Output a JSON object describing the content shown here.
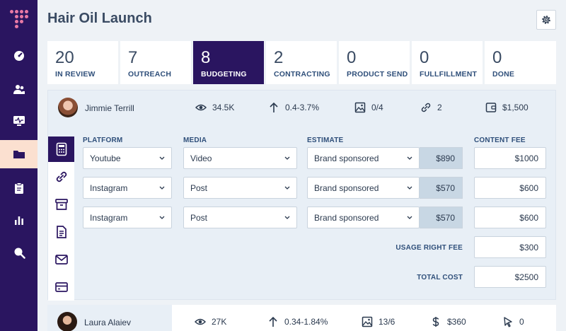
{
  "header": {
    "title": "Hair Oil Launch"
  },
  "icons": {
    "logo": "dot-grid-logo",
    "nav": [
      "dashboard-icon",
      "users-icon",
      "monitor-icon",
      "folder-icon",
      "clipboard-icon",
      "bar-chart-icon",
      "search-icon"
    ],
    "settings": "gear-icon"
  },
  "colors": {
    "brand": "#2a1560",
    "accent": "#e97aa5",
    "active_nav_bg": "#fbe0d0"
  },
  "stages": [
    {
      "count": "20",
      "label": "IN REVIEW"
    },
    {
      "count": "7",
      "label": "OUTREACH"
    },
    {
      "count": "8",
      "label": "BUDGETING"
    },
    {
      "count": "2",
      "label": "CONTRACTING"
    },
    {
      "count": "0",
      "label": "PRODUCT SEND"
    },
    {
      "count": "0",
      "label": "FULLFILLMENT"
    },
    {
      "count": "0",
      "label": "DONE"
    }
  ],
  "active_stage": "BUDGETING",
  "creators": [
    {
      "name": "Jimmie Terrill",
      "views": "34.5K",
      "engagement": "0.4-3.7%",
      "posts": "0/4",
      "links": "2",
      "budget": "$1,500"
    },
    {
      "name": "Laura Alaiev",
      "views": "27K",
      "engagement": "0.34-1.84%",
      "posts": "13/6",
      "budget": "$360",
      "clicks": "0"
    }
  ],
  "budget_form": {
    "headers": {
      "platform": "PLATFORM",
      "media": "MEDIA",
      "estimate": "ESTIMATE",
      "content_fee": "CONTENT FEE"
    },
    "rows": [
      {
        "platform": "Youtube",
        "media": "Video",
        "estimate_type": "Brand sponsored",
        "estimate_price": "$890",
        "content_fee": "$1000"
      },
      {
        "platform": "Instagram",
        "media": "Post",
        "estimate_type": "Brand sponsored",
        "estimate_price": "$570",
        "content_fee": "$600"
      },
      {
        "platform": "Instagram",
        "media": "Post",
        "estimate_type": "Brand sponsored",
        "estimate_price": "$570",
        "content_fee": "$600"
      }
    ],
    "usage_right_fee": {
      "label": "USAGE RIGHT FEE",
      "value": "$300"
    },
    "total_cost": {
      "label": "TOTAL COST",
      "value": "$2500"
    }
  },
  "detail_tabs": [
    "calculator-icon",
    "link-icon",
    "archive-icon",
    "document-icon",
    "mail-icon",
    "credit-card-icon"
  ]
}
